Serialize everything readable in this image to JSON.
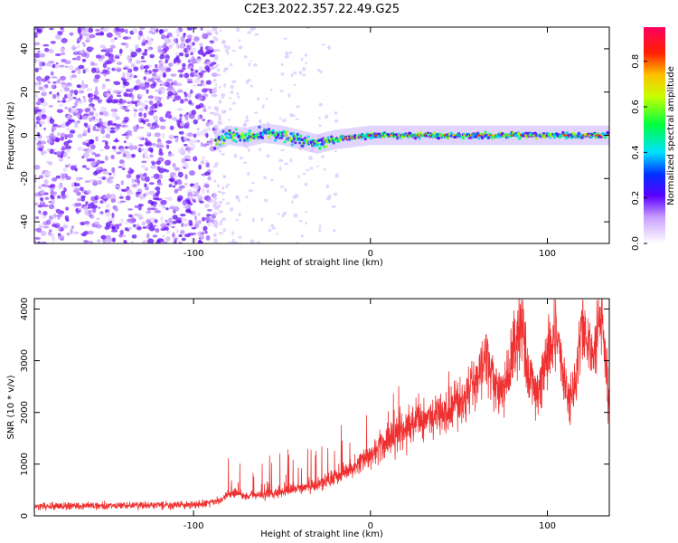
{
  "page_title": "C2E3.2022.357.22.49.G25",
  "chart_data": [
    {
      "type": "heatmap",
      "title": "C2E3.2022.357.22.49.G25",
      "xlabel": "Height of straight line (km)",
      "ylabel": "Frequency (Hz)",
      "xlim": [
        -190,
        135
      ],
      "ylim": [
        -50,
        50
      ],
      "x_ticks": [
        -100,
        0,
        100
      ],
      "y_ticks": [
        -40,
        -20,
        0,
        20,
        40
      ],
      "colorbar": {
        "label": "Normalized spectral amplitude",
        "range": [
          0.0,
          0.95
        ],
        "ticks": [
          "0.0",
          "0.2",
          "0.4",
          "0.6",
          "0.8"
        ]
      },
      "regions": [
        {
          "x": [
            -190,
            -88
          ],
          "description": "scattered noise across all frequencies"
        },
        {
          "x": [
            -88,
            135
          ],
          "description": "narrow signal band near 0 Hz"
        }
      ],
      "band_center_trace": {
        "x": [
          -88,
          -80,
          -70,
          -60,
          -50,
          -40,
          -30,
          -20,
          -10,
          0,
          10,
          20,
          40,
          60,
          80,
          100,
          135
        ],
        "y": [
          -3,
          0,
          -1,
          1,
          0,
          -2,
          -4,
          -2,
          -1,
          0,
          0,
          0,
          0,
          0,
          0,
          0,
          0
        ]
      }
    },
    {
      "type": "line",
      "xlabel": "Height of straight line (km)",
      "ylabel": "SNR (10 * v/v)",
      "xlim": [
        -190,
        135
      ],
      "ylim": [
        0,
        4200
      ],
      "x_ticks": [
        -100,
        0,
        100
      ],
      "y_ticks": [
        0,
        1000,
        2000,
        3000,
        4000
      ],
      "color": "#ef3030",
      "series": [
        {
          "x": [
            -190,
            -170,
            -150,
            -130,
            -110,
            -95,
            -85,
            -78,
            -70,
            -60,
            -50,
            -40,
            -30,
            -20,
            -10,
            0,
            10,
            20,
            30,
            40,
            50,
            55,
            60,
            65,
            70,
            75,
            80,
            85,
            90,
            95,
            100,
            105,
            110,
            115,
            120,
            125,
            130,
            135
          ],
          "y": [
            180,
            190,
            200,
            200,
            210,
            220,
            300,
            450,
            380,
            420,
            450,
            550,
            600,
            750,
            900,
            1200,
            1450,
            1700,
            1900,
            2050,
            2200,
            2400,
            2600,
            3200,
            2500,
            2300,
            3100,
            3700,
            2700,
            2400,
            3200,
            3600,
            2500,
            2300,
            3800,
            3000,
            3900,
            2300
          ]
        }
      ]
    }
  ]
}
